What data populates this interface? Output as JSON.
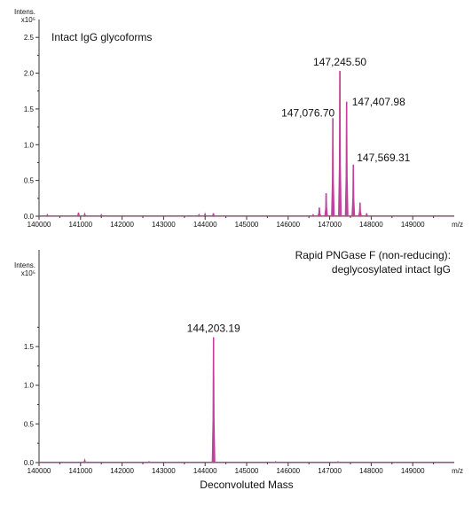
{
  "chart_data": [
    {
      "type": "line",
      "title": "",
      "annotation_lines": [
        "Intact IgG glycoforms"
      ],
      "annotation_align": "left",
      "y_unit_lines": [
        "Intens.",
        "x10⁵"
      ],
      "x_unit": "m/z",
      "xlim": [
        140000,
        150000
      ],
      "ylim": [
        0,
        2.75
      ],
      "x_ticks": [
        140000,
        141000,
        142000,
        143000,
        144000,
        145000,
        146000,
        147000,
        148000,
        149000
      ],
      "x_tick_labels": [
        "140000",
        "141000",
        "142000",
        "143000",
        "144000",
        "145000",
        "146000",
        "147000",
        "148000",
        "149000"
      ],
      "y_ticks": [
        0.0,
        0.5,
        1.0,
        1.5,
        2.0,
        2.5
      ],
      "y_tick_labels": [
        "0.0",
        "0.5",
        "1.0",
        "1.5",
        "2.0",
        "2.5"
      ],
      "series_color": "#c0409a",
      "peaks": [
        {
          "x": 140200,
          "y": 0.02
        },
        {
          "x": 140950,
          "y": 0.05
        },
        {
          "x": 141100,
          "y": 0.03
        },
        {
          "x": 141500,
          "y": 0.02
        },
        {
          "x": 143850,
          "y": 0.02
        },
        {
          "x": 144000,
          "y": 0.03
        },
        {
          "x": 144200,
          "y": 0.04
        },
        {
          "x": 146600,
          "y": 0.02
        },
        {
          "x": 146750,
          "y": 0.12
        },
        {
          "x": 146915,
          "y": 0.32
        },
        {
          "x": 147076.7,
          "y": 1.37
        },
        {
          "x": 147245.5,
          "y": 2.03
        },
        {
          "x": 147407.98,
          "y": 1.6
        },
        {
          "x": 147569.31,
          "y": 0.72
        },
        {
          "x": 147730,
          "y": 0.19
        },
        {
          "x": 147890,
          "y": 0.04
        }
      ],
      "peak_labels": [
        {
          "text": "147,245.50",
          "x": 147245.5,
          "y": 2.03
        },
        {
          "text": "147,407.98",
          "x": 147407.98,
          "y": 1.6
        },
        {
          "text": "147,076.70",
          "x": 147076.7,
          "y": 1.37
        },
        {
          "text": "147,569.31",
          "x": 147569.31,
          "y": 0.72
        }
      ]
    },
    {
      "type": "line",
      "title": "",
      "annotation_lines": [
        "Rapid PNGase F (non-reducing):",
        "deglycosylated intact IgG"
      ],
      "annotation_align": "right",
      "y_unit_lines": [
        "Intens.",
        "x10⁵"
      ],
      "x_unit": "m/z",
      "xlabel": "Deconvoluted Mass",
      "xlim": [
        140000,
        150000
      ],
      "ylim": [
        0,
        2.75
      ],
      "x_ticks": [
        140000,
        141000,
        142000,
        143000,
        144000,
        145000,
        146000,
        147000,
        148000,
        149000
      ],
      "x_tick_labels": [
        "140000",
        "141000",
        "142000",
        "143000",
        "144000",
        "145000",
        "146000",
        "147000",
        "148000",
        "149000"
      ],
      "y_ticks": [
        0.0,
        0.5,
        1.0,
        1.5
      ],
      "y_tick_labels": [
        "0.0",
        "0.5",
        "1.0",
        "1.5"
      ],
      "series_color": "#c0409a",
      "peaks": [
        {
          "x": 141100,
          "y": 0.03
        },
        {
          "x": 142650,
          "y": 0.01
        },
        {
          "x": 144203.19,
          "y": 1.62
        },
        {
          "x": 145700,
          "y": 0.01
        },
        {
          "x": 147200,
          "y": 0.01
        }
      ],
      "peak_labels": [
        {
          "text": "144,203.19",
          "x": 144203.19,
          "y": 1.62
        }
      ]
    }
  ]
}
